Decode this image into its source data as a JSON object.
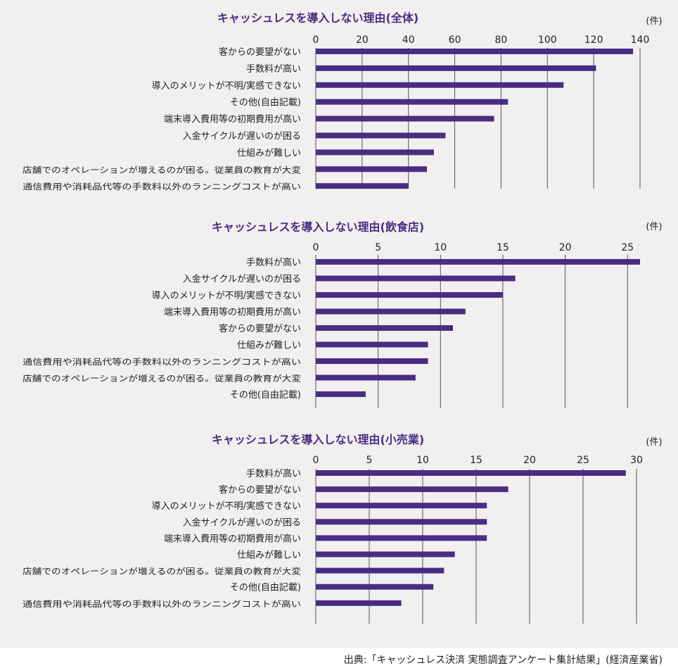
{
  "unit_label": "(件)",
  "source": "出典:「キャッシュレス決済 実態調査アンケート集計結果」(経済産業省)",
  "colors": {
    "bar": "#4a2d82",
    "title": "#4a2d82",
    "grid": "#555555"
  },
  "chart_data": [
    {
      "type": "bar",
      "orientation": "horizontal",
      "title": "キャッシュレスを導入しない理由(全体)",
      "xlim": [
        0,
        140
      ],
      "ticks": [
        0,
        20,
        40,
        60,
        80,
        100,
        120,
        140
      ],
      "grid": true,
      "categories": [
        "客からの要望がない",
        "手数料が高い",
        "導入のメリットが不明/実感できない",
        "その他(自由記載)",
        "端末導入費用等の初期費用が高い",
        "入金サイクルが遅いのが困る",
        "仕組みが難しい",
        "店舗でのオペレーションが増えるのが困る。従業員の教育が大変",
        "通信費用や消耗品代等の手数料以外のランニングコストが高い"
      ],
      "values": [
        137,
        121,
        107,
        83,
        77,
        56,
        51,
        48,
        40
      ]
    },
    {
      "type": "bar",
      "orientation": "horizontal",
      "title": "キャッシュレスを導入しない理由(飲食店)",
      "xlim": [
        0,
        26
      ],
      "ticks": [
        0,
        5,
        10,
        15,
        20,
        25
      ],
      "grid": true,
      "categories": [
        "手数料が高い",
        "入金サイクルが遅いのが困る",
        "導入のメリットが不明/実感できない",
        "端末導入費用等の初期費用が高い",
        "客からの要望がない",
        "仕組みが難しい",
        "通信費用や消耗品代等の手数料以外のランニングコストが高い",
        "店舗でのオペレーションが増えるのが困る。従業員の教育が大変",
        "その他(自由記載)"
      ],
      "values": [
        26,
        16,
        15,
        12,
        11,
        9,
        9,
        8,
        4
      ]
    },
    {
      "type": "bar",
      "orientation": "horizontal",
      "title": "キャッシュレスを導入しない理由(小売業)",
      "xlim": [
        0,
        30
      ],
      "ticks": [
        0,
        5,
        10,
        15,
        20,
        25,
        30
      ],
      "grid": true,
      "categories": [
        "手数料が高い",
        "客からの要望がない",
        "導入のメリットが不明/実感できない",
        "入金サイクルが遅いのが困る",
        "端末導入費用等の初期費用が高い",
        "仕組みが難しい",
        "店舗でのオペレーションが増えるのが困る。従業員の教育が大変",
        "その他(自由記載)",
        "通信費用や消耗品代等の手数料以外のランニングコストが高い"
      ],
      "values": [
        29,
        18,
        16,
        16,
        16,
        13,
        12,
        11,
        8
      ]
    }
  ]
}
